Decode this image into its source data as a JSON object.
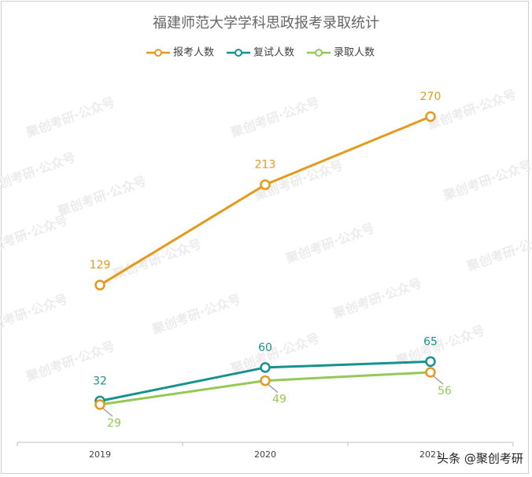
{
  "chart_data": {
    "type": "line",
    "title": "福建师范大学学科思政报考录取统计",
    "categories": [
      "2019",
      "2020",
      "2021"
    ],
    "series": [
      {
        "name": "报考人数",
        "color": "#e69a1c",
        "marker_color": "#e69a1c",
        "values": [
          129,
          213,
          270
        ]
      },
      {
        "name": "复试人数",
        "color": "#17928f",
        "marker_color": "#17928f",
        "values": [
          32,
          60,
          65
        ]
      },
      {
        "name": "录取人数",
        "color": "#94c955",
        "marker_color": "#e69a1c",
        "values": [
          29,
          49,
          56
        ]
      }
    ],
    "ylim": [
      0,
      300
    ],
    "watermark": "聚创考研·公众号",
    "credit": "头条 @聚创考研"
  }
}
